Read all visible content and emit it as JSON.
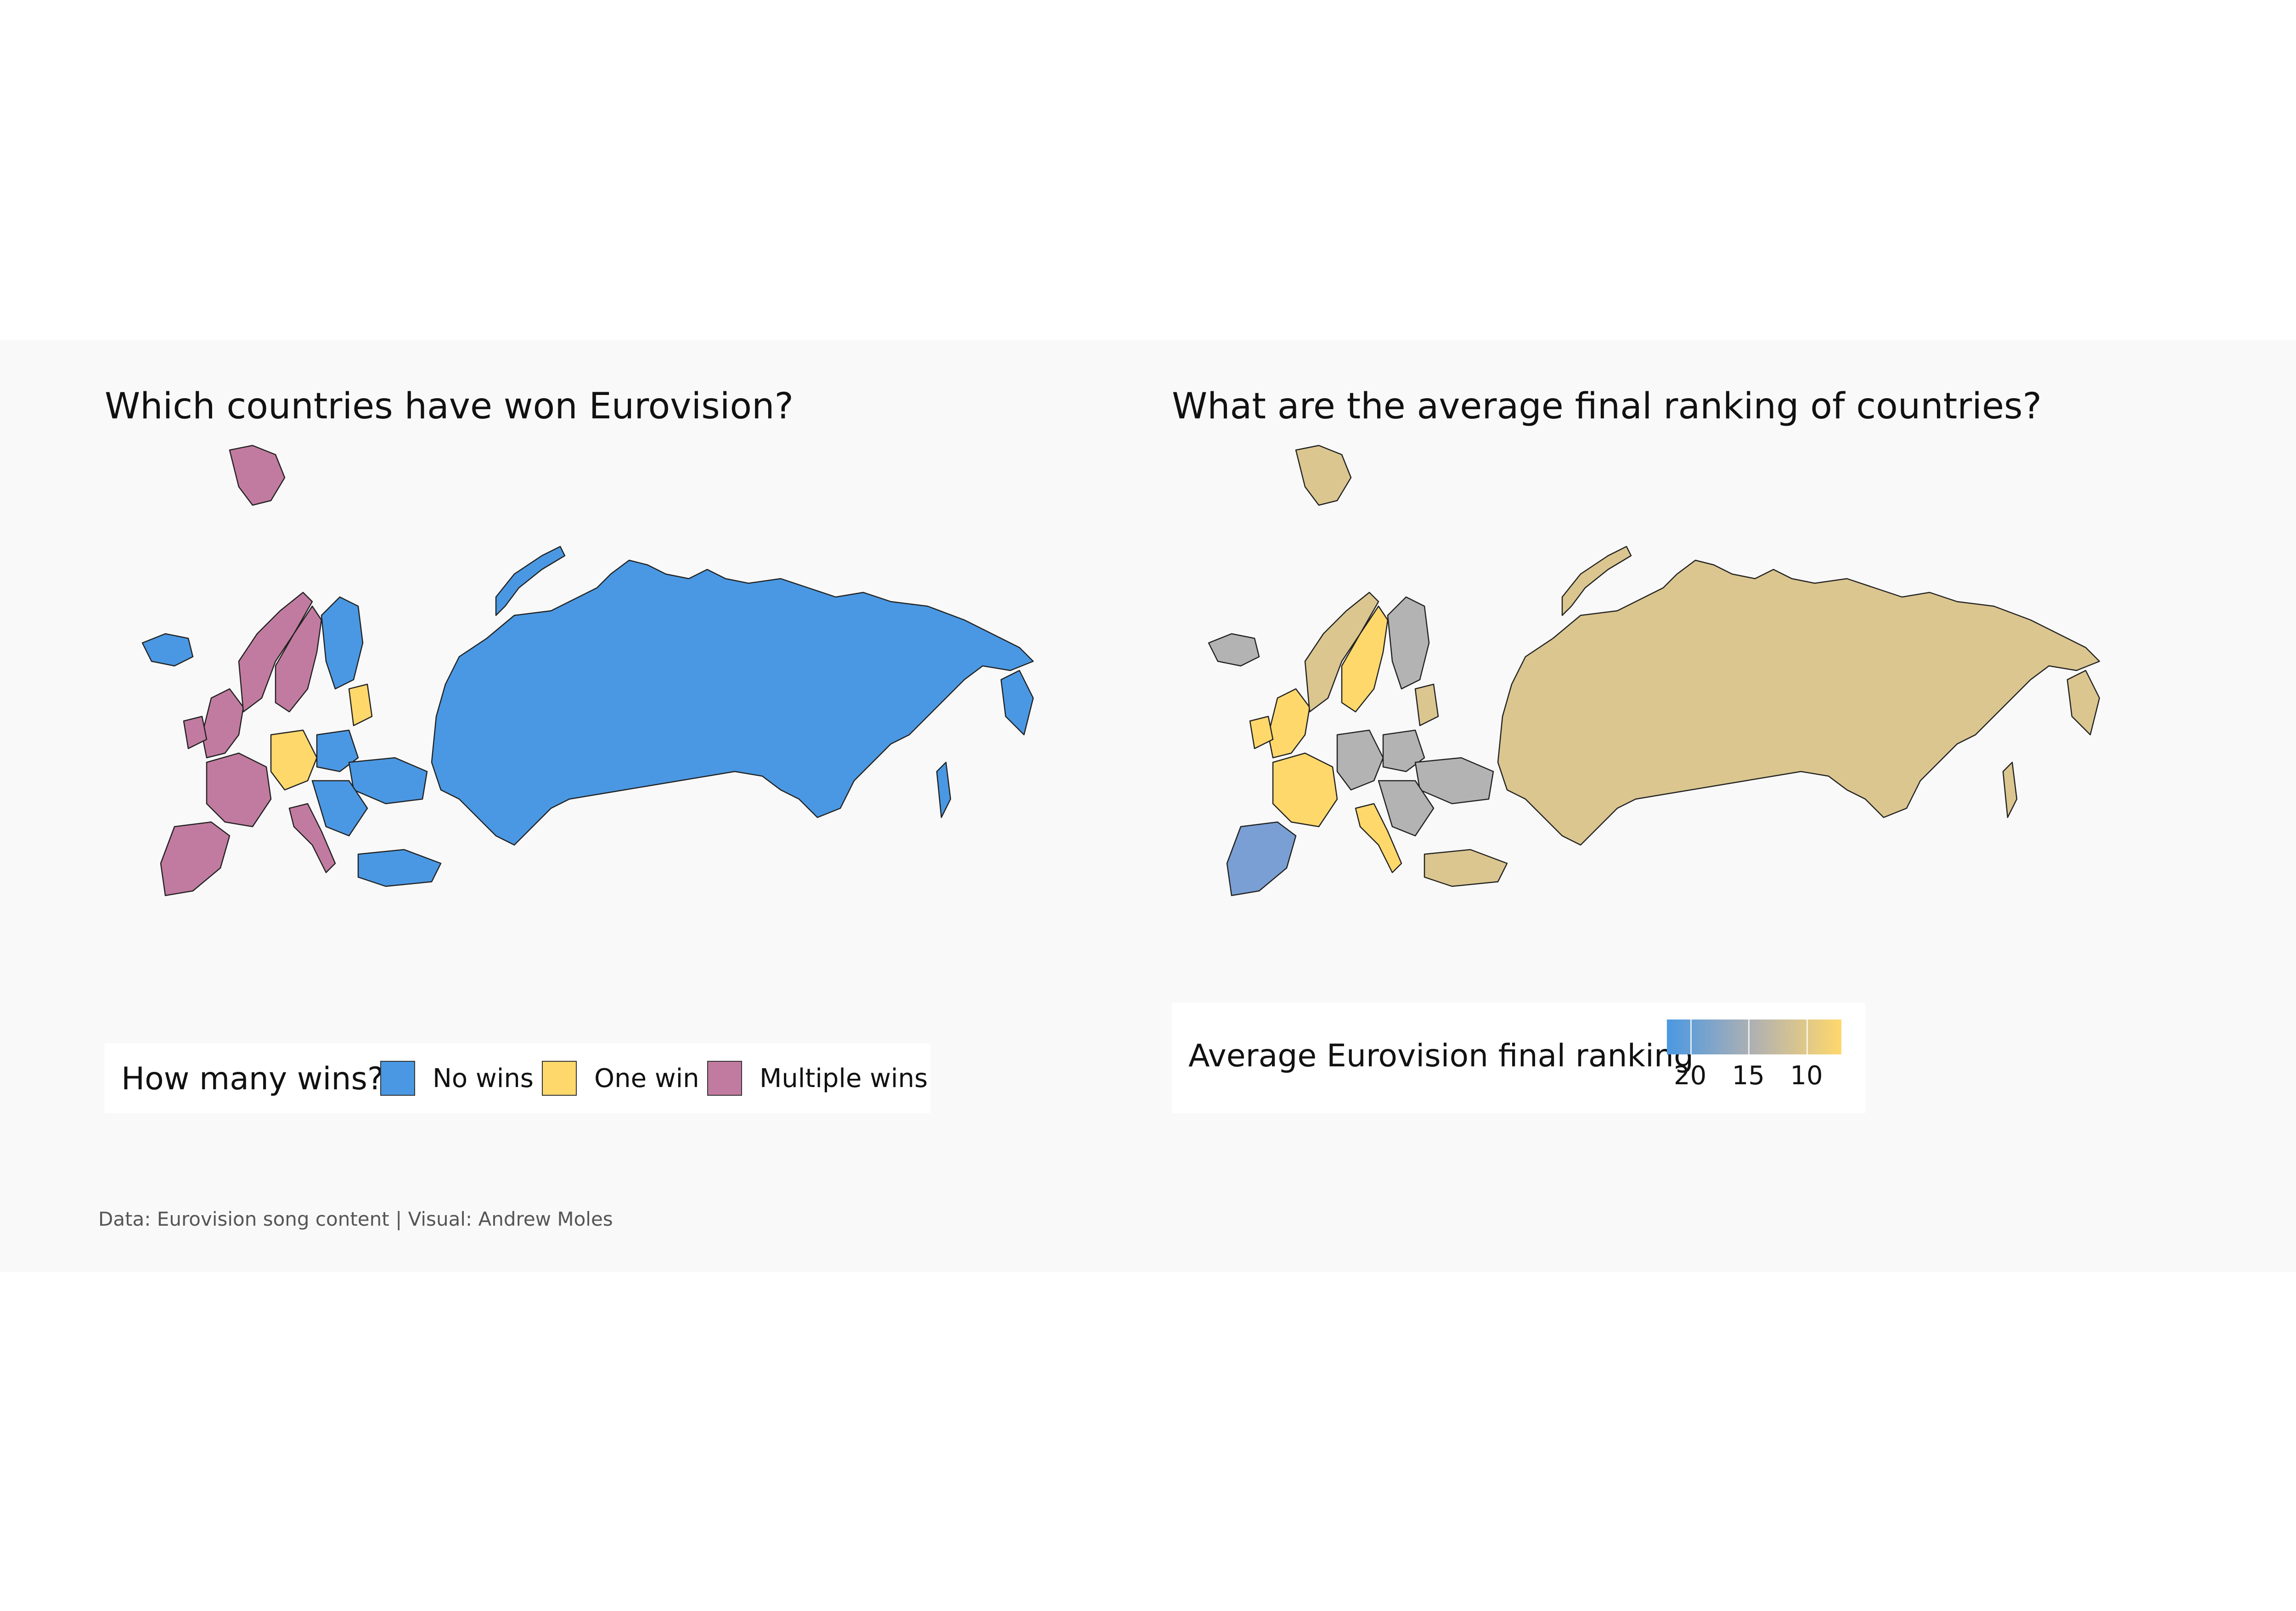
{
  "caption": "Data: Eurovision song content | Visual: Andrew Moles",
  "colors": {
    "panel_background": "#f9f9f9",
    "no_wins": "#4a98e3",
    "one_win": "#ffd86c",
    "multiple_wins": "#c27ba0",
    "gradient_low": "#4a98e3",
    "gradient_mid": "#b1b1b1",
    "gradient_high": "#ffd86c",
    "map_tan": "#dbc690",
    "map_grey": "#b3b3b3",
    "map_soft_blue": "#7a9fd4"
  },
  "left_map": {
    "title": "Which countries have won Eurovision?",
    "legend": {
      "title": "How many wins?",
      "items": [
        {
          "label": "No wins",
          "color": "#4a98e3"
        },
        {
          "label": "One win",
          "color": "#ffd86c"
        },
        {
          "label": "Multiple wins",
          "color": "#c27ba0"
        }
      ]
    }
  },
  "right_map": {
    "title": "What are the average final ranking of countries?",
    "legend": {
      "title": "Average Eurovision final ranking",
      "scale": {
        "min_shown": 20,
        "max_shown": 10,
        "domain": [
          22,
          7
        ]
      },
      "ticks": [
        {
          "label": "20",
          "value": 20
        },
        {
          "label": "15",
          "value": 15
        },
        {
          "label": "10",
          "value": 10
        }
      ]
    }
  }
}
